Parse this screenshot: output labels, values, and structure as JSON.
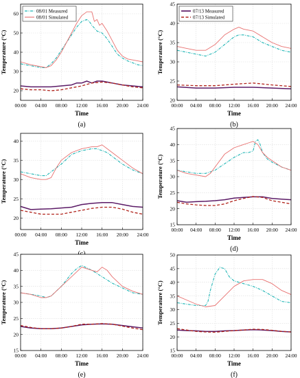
{
  "figure": {
    "xlabel": "Time",
    "ylabel": "Temperature (°C)",
    "xticks": [
      "00:00",
      "04:00",
      "08:00",
      "12:00",
      "16:00",
      "20:00",
      "24:00"
    ],
    "colors": {
      "measured_upper": "#1fb5b5",
      "simulated_upper": "#e8706f",
      "measured_lower": "#5b1a66",
      "simulated_lower": "#b0221a",
      "grid": "#dddddd",
      "frame": "#000000"
    }
  },
  "chart_data": [
    {
      "type": "line",
      "panel_label": "(a)",
      "legend": {
        "placement": "top-left",
        "entries": [
          "08/01 Measured",
          "08/01 Simulated"
        ]
      },
      "x_range": [
        0,
        24
      ],
      "ylim": [
        15,
        65
      ],
      "yticks": [
        20,
        30,
        40,
        50,
        60
      ],
      "grid": true,
      "series": [
        {
          "name": "08/01 Measured",
          "style": "measured_upper",
          "x": [
            0,
            2,
            4,
            5,
            6,
            7,
            8,
            9,
            10,
            11,
            12,
            13,
            13.5,
            14,
            15,
            16,
            17,
            18,
            19,
            20,
            21,
            22,
            23,
            24
          ],
          "y": [
            34,
            33,
            32,
            32,
            34,
            37,
            41,
            45,
            49,
            53,
            56,
            57,
            56,
            54,
            51,
            50,
            47,
            43,
            39,
            37,
            35.5,
            34.5,
            33.5,
            33
          ]
        },
        {
          "name": "08/01 Simulated",
          "style": "simulated_upper",
          "x": [
            0,
            2,
            4,
            5,
            6,
            7,
            8,
            9,
            10,
            11,
            12,
            13,
            14,
            14.5,
            15,
            15.5,
            16,
            17,
            18,
            19,
            20,
            21,
            22,
            23,
            24
          ],
          "y": [
            35,
            33.5,
            32.5,
            32,
            33,
            36,
            40,
            45,
            50,
            55,
            59,
            61,
            61,
            56,
            57,
            54,
            55,
            51,
            46,
            41,
            38,
            36.5,
            36,
            35.5,
            35
          ]
        },
        {
          "name": "",
          "style": "measured_lower",
          "x": [
            0,
            2,
            4,
            6,
            8,
            10,
            11,
            12,
            13,
            14,
            15,
            16,
            17,
            18,
            20,
            22,
            24
          ],
          "y": [
            22.5,
            22,
            22,
            22,
            22.5,
            23,
            24,
            24,
            25,
            24,
            25,
            25,
            24.5,
            24,
            23,
            22.5,
            22
          ]
        },
        {
          "name": "",
          "style": "simulated_lower",
          "x": [
            0,
            2,
            4,
            6,
            8,
            10,
            12,
            14,
            16,
            18,
            20,
            22,
            24
          ],
          "y": [
            21,
            20.5,
            20.5,
            20,
            20.5,
            21.5,
            22.5,
            24,
            24.5,
            24,
            23,
            22,
            21.5
          ]
        }
      ]
    },
    {
      "type": "line",
      "panel_label": "(b)",
      "legend": {
        "placement": "top-left",
        "entries": [
          "07/13 Measured",
          "07/13 Simulated"
        ]
      },
      "x_range": [
        0,
        24
      ],
      "ylim": [
        20,
        45
      ],
      "yticks": [
        20,
        25,
        30,
        35,
        40,
        45
      ],
      "grid": true,
      "series": [
        {
          "name": "",
          "style": "measured_upper",
          "x": [
            0,
            2,
            4,
            6,
            8,
            10,
            12,
            13,
            14,
            16,
            18,
            20,
            22,
            24
          ],
          "y": [
            33,
            32.5,
            32,
            31.5,
            32.5,
            34.5,
            36.5,
            37,
            37,
            36.5,
            35,
            34,
            33,
            32.5
          ]
        },
        {
          "name": "",
          "style": "simulated_upper",
          "x": [
            0,
            2,
            4,
            6,
            8,
            10,
            12,
            13,
            14,
            16,
            18,
            20,
            22,
            24
          ],
          "y": [
            34,
            33.5,
            33,
            33,
            34.5,
            37,
            38.5,
            39,
            38.5,
            38,
            36.5,
            35,
            34,
            33.5
          ]
        },
        {
          "name": "07/13 Measured",
          "style": "measured_lower",
          "x": [
            0,
            4,
            8,
            12,
            16,
            20,
            24
          ],
          "y": [
            23.5,
            23.2,
            23.2,
            23.4,
            23.4,
            23.2,
            23
          ]
        },
        {
          "name": "07/13 Simulated",
          "style": "simulated_lower",
          "x": [
            0,
            4,
            8,
            12,
            16,
            20,
            24
          ],
          "y": [
            24,
            23.8,
            23.8,
            24.2,
            24.5,
            24,
            23.6
          ]
        }
      ]
    },
    {
      "type": "line",
      "panel_label": "(c)",
      "x_range": [
        0,
        24
      ],
      "ylim": [
        17,
        42
      ],
      "yticks": [
        20,
        25,
        30,
        35,
        40
      ],
      "grid": true,
      "series": [
        {
          "name": "",
          "style": "measured_upper",
          "x": [
            0,
            2,
            4,
            5,
            6,
            8,
            10,
            12,
            14,
            15,
            16,
            17,
            18,
            20,
            22,
            24
          ],
          "y": [
            32,
            31.5,
            31,
            31,
            32,
            34,
            36.5,
            37.5,
            38,
            38,
            37.5,
            37,
            36,
            34,
            32.5,
            31.5
          ]
        },
        {
          "name": "",
          "style": "simulated_upper",
          "x": [
            0,
            2,
            4,
            5,
            6,
            7,
            8,
            10,
            12,
            14,
            15,
            16,
            17,
            18,
            20,
            22,
            24
          ],
          "y": [
            31.5,
            30.5,
            30,
            30,
            30.5,
            33,
            35,
            37,
            38,
            38.5,
            38.5,
            39,
            38,
            37,
            35,
            33,
            31.5
          ]
        },
        {
          "name": "",
          "style": "measured_lower",
          "x": [
            0,
            2,
            4,
            6,
            8,
            10,
            12,
            14,
            16,
            18,
            20,
            22,
            24
          ],
          "y": [
            23,
            22.2,
            22.3,
            22.4,
            22.6,
            22.8,
            23.5,
            23.8,
            24,
            24,
            23.5,
            23,
            22.8
          ]
        },
        {
          "name": "",
          "style": "simulated_lower",
          "x": [
            0,
            2,
            4,
            6,
            8,
            10,
            12,
            14,
            16,
            18,
            20,
            22,
            24
          ],
          "y": [
            22,
            21.5,
            21,
            21,
            21,
            21.5,
            22,
            22.5,
            22.8,
            22.8,
            22.3,
            21.5,
            21
          ]
        }
      ]
    },
    {
      "type": "line",
      "panel_label": "(d)",
      "x_range": [
        0,
        24
      ],
      "ylim": [
        15,
        45
      ],
      "yticks": [
        15,
        20,
        25,
        30,
        35,
        40,
        45
      ],
      "grid": true,
      "series": [
        {
          "name": "",
          "style": "measured_upper",
          "x": [
            0,
            2,
            4,
            6,
            8,
            10,
            12,
            14,
            15,
            16,
            16.5,
            17,
            17.5,
            18,
            19,
            20,
            22,
            24
          ],
          "y": [
            32,
            31.5,
            31,
            31,
            32,
            34,
            36,
            37.5,
            37.5,
            38,
            41,
            41.5,
            40,
            37.5,
            35.5,
            34.5,
            33,
            32
          ]
        },
        {
          "name": "",
          "style": "simulated_upper",
          "x": [
            0,
            2,
            4,
            6,
            7,
            8,
            10,
            12,
            14,
            15,
            16,
            17,
            18,
            19,
            20,
            22,
            24
          ],
          "y": [
            32,
            31,
            30.5,
            30,
            31,
            33,
            37,
            39,
            40,
            40.5,
            41,
            40,
            37.5,
            36,
            35,
            33,
            32
          ]
        },
        {
          "name": "",
          "style": "measured_lower",
          "x": [
            0,
            2,
            4,
            6,
            8,
            10,
            12,
            14,
            16,
            18,
            20,
            22,
            24
          ],
          "y": [
            22.5,
            22,
            22.2,
            22.3,
            22.5,
            22.8,
            23.3,
            23.5,
            23.7,
            23.7,
            23.2,
            23,
            22.8
          ]
        },
        {
          "name": "",
          "style": "simulated_lower",
          "x": [
            0,
            2,
            4,
            6,
            8,
            10,
            12,
            14,
            16,
            18,
            20,
            22,
            24
          ],
          "y": [
            22,
            21.5,
            21.2,
            21,
            21,
            21.5,
            22.5,
            23.2,
            23.8,
            23.5,
            22.5,
            22,
            21.5
          ]
        }
      ]
    },
    {
      "type": "line",
      "panel_label": "(e)",
      "x_range": [
        0,
        24
      ],
      "ylim": [
        15,
        45
      ],
      "yticks": [
        15,
        20,
        25,
        30,
        35,
        40,
        45
      ],
      "grid": true,
      "series": [
        {
          "name": "",
          "style": "measured_upper",
          "x": [
            0,
            2,
            4,
            5,
            6,
            8,
            10,
            11,
            12,
            14,
            16,
            18,
            20,
            22,
            24
          ],
          "y": [
            33,
            32.5,
            32,
            31.5,
            32,
            35,
            39,
            40.5,
            41.5,
            40,
            38,
            36,
            34.5,
            33,
            32.5
          ]
        },
        {
          "name": "",
          "style": "simulated_upper",
          "x": [
            0,
            2,
            4,
            5,
            6,
            7,
            8,
            10,
            12,
            14,
            15,
            16,
            17,
            18,
            20,
            22,
            24
          ],
          "y": [
            33,
            32.5,
            31.5,
            31.5,
            32,
            33.5,
            35,
            38,
            41,
            40,
            39.5,
            41,
            40,
            38,
            35,
            33.5,
            32.5
          ]
        },
        {
          "name": "",
          "style": "measured_lower",
          "x": [
            0,
            2,
            4,
            6,
            8,
            10,
            12,
            14,
            16,
            18,
            20,
            22,
            24
          ],
          "y": [
            22.5,
            22,
            21.8,
            21.8,
            22,
            22.5,
            23,
            23.2,
            23.3,
            23.2,
            22.8,
            22.4,
            22
          ]
        },
        {
          "name": "",
          "style": "simulated_lower",
          "x": [
            0,
            2,
            4,
            6,
            8,
            10,
            12,
            14,
            16,
            18,
            20,
            22,
            24
          ],
          "y": [
            22.8,
            22.2,
            21.8,
            21.8,
            22,
            22.5,
            23.2,
            23.2,
            23.4,
            23.2,
            22.6,
            22,
            21.5
          ]
        }
      ]
    },
    {
      "type": "line",
      "panel_label": "(f)",
      "x_range": [
        0,
        24
      ],
      "ylim": [
        15,
        50
      ],
      "yticks": [
        15,
        20,
        25,
        30,
        35,
        40,
        45,
        50
      ],
      "grid": true,
      "series": [
        {
          "name": "",
          "style": "measured_upper",
          "x": [
            0,
            2,
            4,
            5,
            6,
            6.5,
            7,
            8,
            9,
            10,
            11,
            12,
            13,
            14,
            16,
            18,
            20,
            22,
            24
          ],
          "y": [
            32.5,
            32,
            31.5,
            31.5,
            31.5,
            33,
            37,
            43,
            45.5,
            45,
            42,
            40.5,
            40,
            39.5,
            38.5,
            37,
            35,
            33,
            32.5
          ]
        },
        {
          "name": "",
          "style": "simulated_upper",
          "x": [
            0,
            2,
            4,
            6,
            8,
            10,
            12,
            14,
            16,
            18,
            20,
            22,
            24
          ],
          "y": [
            35,
            33.5,
            32,
            31,
            31.5,
            35,
            38.5,
            40.5,
            41,
            41,
            39.5,
            37,
            35.5
          ]
        },
        {
          "name": "",
          "style": "measured_lower",
          "x": [
            0,
            2,
            4,
            6,
            8,
            10,
            12,
            14,
            16,
            18,
            20,
            22,
            24
          ],
          "y": [
            22.5,
            22.3,
            22.2,
            22,
            22,
            22.2,
            22.3,
            22.5,
            22.6,
            22.5,
            22.3,
            22,
            21.8
          ]
        },
        {
          "name": "",
          "style": "simulated_lower",
          "x": [
            0,
            2,
            4,
            6,
            8,
            10,
            12,
            14,
            16,
            18,
            20,
            22,
            24
          ],
          "y": [
            23,
            22.5,
            22,
            21.8,
            21.7,
            22,
            22.3,
            22.5,
            22.8,
            22.7,
            22.4,
            22,
            21.8
          ]
        }
      ]
    }
  ]
}
